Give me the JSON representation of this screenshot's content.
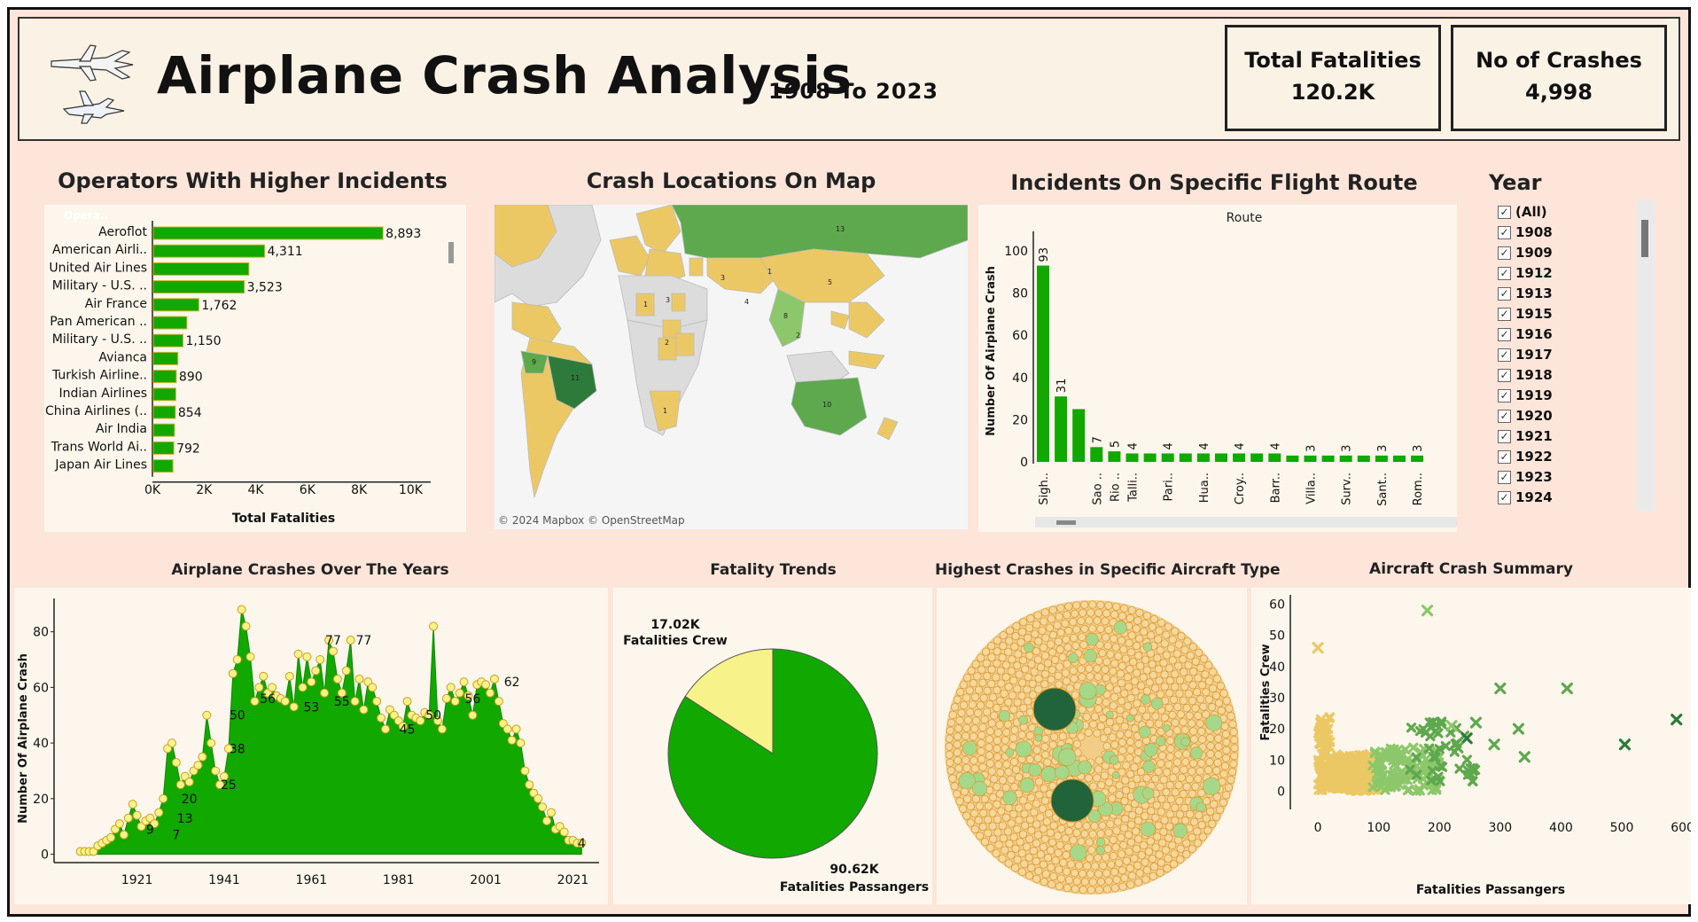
{
  "header": {
    "title": "Airplane Crash Analysis",
    "subtitle": "1908  To  2023",
    "kpis": [
      {
        "label": "Total Fatalities",
        "value": "120.2K"
      },
      {
        "label": "No of Crashes",
        "value": "4,998"
      }
    ]
  },
  "sections": {
    "operators": "Operators With Higher Incidents",
    "map": "Crash Locations On Map",
    "route": "Incidents On Specific Flight Route",
    "year": "Year",
    "years_chart": "Airplane Crashes Over The Years",
    "fatality": "Fatality Trends",
    "aircraft": "Highest Crashes in Specific Aircraft Type",
    "summary": "Aircraft Crash Summary"
  },
  "map_attribution": "© 2024 Mapbox © OpenStreetMap",
  "year_filter": {
    "items": [
      "(All)",
      "1908",
      "1909",
      "1912",
      "1913",
      "1915",
      "1916",
      "1917",
      "1918",
      "1919",
      "1920",
      "1921",
      "1922",
      "1923",
      "1924"
    ]
  },
  "colors": {
    "bar_green": "#11a800",
    "bar_outline": "#d8b130",
    "dark_green": "#2d7a3a",
    "mid_green": "#5ea84e",
    "light_green": "#8cc86b",
    "gold": "#ecc865",
    "yellow": "#f7f28a",
    "header_bg": "#fbf2e6",
    "page_bg": "#fde5da"
  },
  "chart_data": [
    {
      "id": "operators",
      "type": "bar",
      "orientation": "horizontal",
      "header": "Opera..",
      "categories": [
        "Aeroflot",
        "American Airli..",
        "United Air Lines",
        "Military - U.S. ..",
        "Air France",
        "Pan American ..",
        "Military - U.S. ..",
        "Avianca",
        "Turkish Airline..",
        "Indian Airlines",
        "China Airlines (..",
        "Air India",
        "Trans World Ai..",
        "Japan Air Lines"
      ],
      "values": [
        8893,
        4311,
        3700,
        3523,
        1762,
        1300,
        1150,
        950,
        890,
        870,
        854,
        820,
        792,
        760
      ],
      "labels": [
        "8,893",
        "4,311",
        "",
        "3,523",
        "1,762",
        "",
        "1,150",
        "",
        "890",
        "",
        "854",
        "",
        "792",
        ""
      ],
      "xlabel": "Total Fatalities",
      "xticks": [
        "0K",
        "2K",
        "4K",
        "6K",
        "8K",
        "10K"
      ],
      "xlim": [
        0,
        10500
      ]
    },
    {
      "id": "map",
      "type": "heatmap",
      "labels": [
        "13",
        "11",
        "10",
        "9",
        "8",
        "5",
        "4",
        "3",
        "3",
        "2",
        "2",
        "1",
        "1",
        "1"
      ]
    },
    {
      "id": "route",
      "type": "bar",
      "title": "Route",
      "ylabel": "Number Of Airplane Crash",
      "categories": [
        "Sigh..",
        "",
        "",
        "Sao ..",
        "Rio ..",
        "Talli..",
        "",
        "Pari..",
        "",
        "Hua..",
        "",
        "Croy..",
        "",
        "Barr..",
        "",
        "Villa..",
        "",
        "Surv..",
        "",
        "Sant..",
        "",
        "Rom.."
      ],
      "values": [
        93,
        31,
        25,
        7,
        5,
        4,
        4,
        4,
        4,
        4,
        4,
        4,
        4,
        4,
        3,
        3,
        3,
        3,
        3,
        3,
        3,
        3
      ],
      "labels": [
        "93",
        "31",
        "",
        "7",
        "5",
        "4",
        "",
        "4",
        "",
        "4",
        "",
        "4",
        "",
        "4",
        "",
        "3",
        "",
        "3",
        "",
        "3",
        "",
        "3"
      ],
      "yticks": [
        0,
        20,
        40,
        60,
        80,
        100
      ],
      "ylim": [
        0,
        105
      ]
    },
    {
      "id": "years",
      "type": "area",
      "ylabel": "Number Of Airplane Crash",
      "x": [
        1908,
        1909,
        1910,
        1911,
        1912,
        1913,
        1914,
        1915,
        1916,
        1917,
        1918,
        1919,
        1920,
        1921,
        1922,
        1923,
        1924,
        1925,
        1926,
        1927,
        1928,
        1929,
        1930,
        1931,
        1932,
        1933,
        1934,
        1935,
        1936,
        1937,
        1938,
        1939,
        1940,
        1941,
        1942,
        1943,
        1944,
        1945,
        1946,
        1947,
        1948,
        1949,
        1950,
        1951,
        1952,
        1953,
        1954,
        1955,
        1956,
        1957,
        1958,
        1959,
        1960,
        1961,
        1962,
        1963,
        1964,
        1965,
        1966,
        1967,
        1968,
        1969,
        1970,
        1971,
        1972,
        1973,
        1974,
        1975,
        1976,
        1977,
        1978,
        1979,
        1980,
        1981,
        1982,
        1983,
        1984,
        1985,
        1986,
        1987,
        1988,
        1989,
        1990,
        1991,
        1992,
        1993,
        1994,
        1995,
        1996,
        1997,
        1998,
        1999,
        2000,
        2001,
        2002,
        2003,
        2004,
        2005,
        2006,
        2007,
        2008,
        2009,
        2010,
        2011,
        2012,
        2013,
        2014,
        2015,
        2016,
        2017,
        2018,
        2019,
        2020,
        2021,
        2022,
        2023
      ],
      "values": [
        1,
        1,
        1,
        1,
        3,
        4,
        5,
        6,
        9,
        11,
        7,
        13,
        18,
        14,
        10,
        12,
        13,
        11,
        15,
        20,
        38,
        40,
        33,
        25,
        28,
        26,
        30,
        32,
        35,
        50,
        40,
        30,
        25,
        28,
        38,
        65,
        70,
        88,
        82,
        71,
        55,
        60,
        64,
        58,
        60,
        57,
        56,
        55,
        64,
        53,
        72,
        60,
        71,
        62,
        66,
        70,
        58,
        77,
        73,
        63,
        58,
        66,
        77,
        55,
        63,
        52,
        62,
        60,
        55,
        49,
        45,
        52,
        50,
        48,
        46,
        55,
        50,
        49,
        48,
        51,
        50,
        82,
        48,
        45,
        56,
        60,
        55,
        58,
        62,
        57,
        50,
        61,
        62,
        61,
        58,
        63,
        55,
        47,
        45,
        41,
        45,
        40,
        30,
        25,
        22,
        20,
        17,
        12,
        15,
        9,
        10,
        8,
        5,
        5,
        4,
        4
      ],
      "labels": [
        {
          "x": 1924,
          "y": 9,
          "t": "9"
        },
        {
          "x": 1930,
          "y": 7,
          "t": "7"
        },
        {
          "x": 1932,
          "y": 13,
          "t": "13"
        },
        {
          "x": 1933,
          "y": 20,
          "t": "20"
        },
        {
          "x": 1942,
          "y": 25,
          "t": "25"
        },
        {
          "x": 1944,
          "y": 38,
          "t": "38"
        },
        {
          "x": 1944,
          "y": 50,
          "t": "50"
        },
        {
          "x": 1951,
          "y": 56,
          "t": "56"
        },
        {
          "x": 1961,
          "y": 53,
          "t": "53"
        },
        {
          "x": 1966,
          "y": 77,
          "t": "77"
        },
        {
          "x": 1968,
          "y": 55,
          "t": "55"
        },
        {
          "x": 1973,
          "y": 77,
          "t": "77"
        },
        {
          "x": 1983,
          "y": 45,
          "t": "45"
        },
        {
          "x": 1989,
          "y": 50,
          "t": "50"
        },
        {
          "x": 1998,
          "y": 56,
          "t": "56"
        },
        {
          "x": 2007,
          "y": 62,
          "t": "62"
        },
        {
          "x": 2023,
          "y": 4,
          "t": "4"
        }
      ],
      "xticks": [
        1921,
        1941,
        1961,
        1981,
        2001,
        2021
      ],
      "yticks": [
        0,
        20,
        40,
        60,
        80
      ],
      "ylim": [
        -3,
        92
      ],
      "xlim": [
        1904,
        2027
      ]
    },
    {
      "id": "fatality",
      "type": "pie",
      "slices": [
        {
          "name": "Fatalities Crew",
          "value": 17.02,
          "label": "17.02K"
        },
        {
          "name": "Fatalities Passangers",
          "value": 90.62,
          "label": "90.62K"
        }
      ]
    },
    {
      "id": "aircraft",
      "type": "scatter",
      "kind": "packed-bubbles"
    },
    {
      "id": "summary",
      "type": "scatter",
      "xlabel": "Fatalities Passangers",
      "ylabel": "Fatalities Crew",
      "xticks": [
        0,
        100,
        200,
        300,
        400,
        500,
        600
      ],
      "yticks": [
        0,
        10,
        20,
        30,
        40,
        50,
        60
      ],
      "xlim": [
        -25,
        605
      ],
      "ylim": [
        -3,
        63
      ],
      "outliers": [
        {
          "x": 180,
          "y": 58,
          "c": "light"
        },
        {
          "x": 0,
          "y": 46,
          "c": "gold"
        },
        {
          "x": 300,
          "y": 33,
          "c": "mid"
        },
        {
          "x": 410,
          "y": 33,
          "c": "mid"
        },
        {
          "x": 590,
          "y": 23,
          "c": "dark"
        },
        {
          "x": 505,
          "y": 15,
          "c": "dark"
        },
        {
          "x": 340,
          "y": 11,
          "c": "mid"
        },
        {
          "x": 330,
          "y": 20,
          "c": "mid"
        },
        {
          "x": 290,
          "y": 15,
          "c": "mid"
        },
        {
          "x": 260,
          "y": 22,
          "c": "mid"
        },
        {
          "x": 245,
          "y": 17,
          "c": "dark"
        },
        {
          "x": 230,
          "y": 14,
          "c": "mid"
        },
        {
          "x": 220,
          "y": 21,
          "c": "light"
        }
      ]
    }
  ]
}
